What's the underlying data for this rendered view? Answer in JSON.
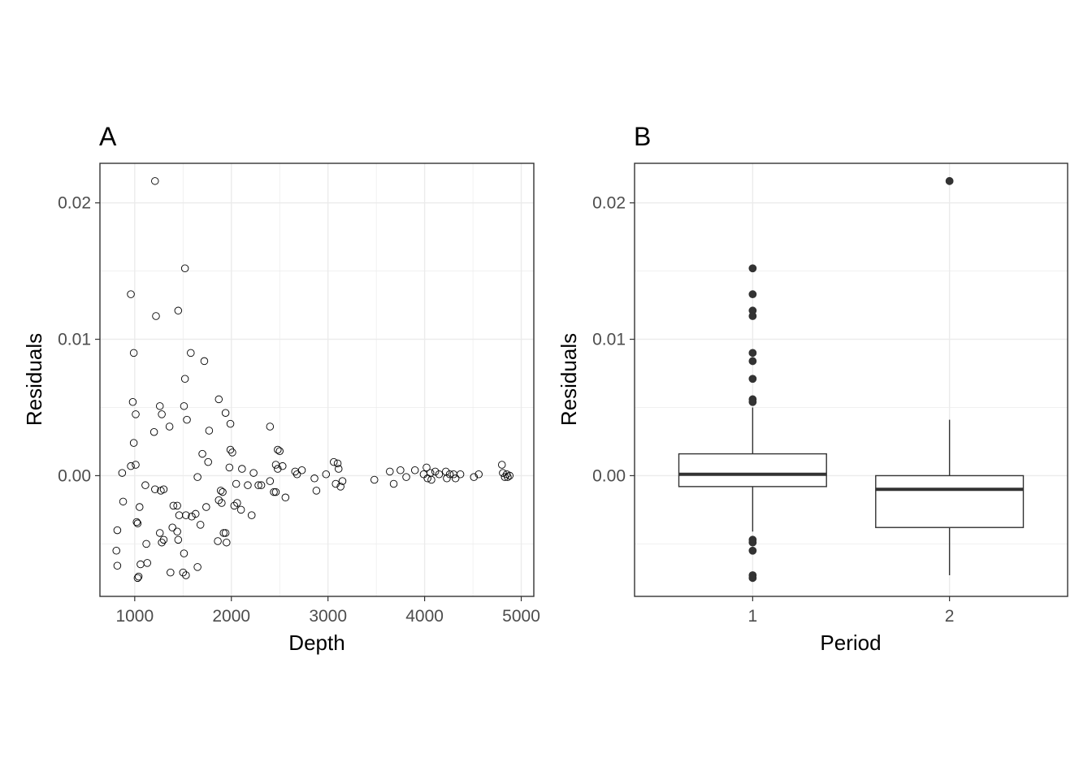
{
  "chart_data": [
    {
      "type": "scatter",
      "tag": "A",
      "xlabel": "Depth",
      "ylabel": "Residuals",
      "xlim": [
        640,
        5130
      ],
      "ylim": [
        -0.00885,
        0.0229
      ],
      "xticks": [
        1000,
        2000,
        3000,
        4000,
        5000
      ],
      "xtick_labels": [
        "1000",
        "2000",
        "3000",
        "4000",
        "5000"
      ],
      "yticks": [
        0.0,
        0.01,
        0.02
      ],
      "ytick_labels": [
        "0.00",
        "0.01",
        "0.02"
      ],
      "grid": true,
      "colors": {
        "point_stroke": "#000000",
        "panel_border": "#333333",
        "grid": "#ebebeb"
      },
      "points": [
        [
          1210,
          0.0216
        ],
        [
          960,
          0.0133
        ],
        [
          1520,
          0.0152
        ],
        [
          1220,
          0.0117
        ],
        [
          1450,
          0.0121
        ],
        [
          990,
          0.009
        ],
        [
          1580,
          0.009
        ],
        [
          1720,
          0.0084
        ],
        [
          1520,
          0.0071
        ],
        [
          980,
          0.0054
        ],
        [
          1010,
          0.0045
        ],
        [
          1260,
          0.0051
        ],
        [
          1280,
          0.0045
        ],
        [
          1510,
          0.0051
        ],
        [
          1540,
          0.0041
        ],
        [
          1870,
          0.0056
        ],
        [
          1940,
          0.0046
        ],
        [
          1990,
          0.0038
        ],
        [
          1360,
          0.0036
        ],
        [
          1200,
          0.0032
        ],
        [
          1770,
          0.0033
        ],
        [
          2400,
          0.0036
        ],
        [
          990,
          0.0024
        ],
        [
          1700,
          0.0016
        ],
        [
          1760,
          0.001
        ],
        [
          1990,
          0.0019
        ],
        [
          2010,
          0.0017
        ],
        [
          2480,
          0.0019
        ],
        [
          2500,
          0.0018
        ],
        [
          960,
          0.0007
        ],
        [
          1010,
          0.0008
        ],
        [
          870,
          0.0002
        ],
        [
          1650,
          -0.0001
        ],
        [
          1980,
          0.0006
        ],
        [
          2110,
          0.0005
        ],
        [
          2230,
          0.0002
        ],
        [
          2460,
          0.0008
        ],
        [
          2480,
          0.0005
        ],
        [
          2530,
          0.0007
        ],
        [
          2660,
          0.0003
        ],
        [
          2680,
          0.0001
        ],
        [
          2730,
          0.0004
        ],
        [
          2860,
          -0.0002
        ],
        [
          2980,
          0.0001
        ],
        [
          3060,
          0.001
        ],
        [
          3100,
          0.0009
        ],
        [
          3110,
          0.0005
        ],
        [
          3080,
          -0.0006
        ],
        [
          3130,
          -0.0008
        ],
        [
          3150,
          -0.0004
        ],
        [
          3480,
          -0.0003
        ],
        [
          3640,
          0.0003
        ],
        [
          3680,
          -0.0006
        ],
        [
          3750,
          0.0004
        ],
        [
          3810,
          -0.0001
        ],
        [
          3900,
          0.0004
        ],
        [
          3990,
          0.0001
        ],
        [
          4020,
          0.0006
        ],
        [
          4030,
          -0.0002
        ],
        [
          4060,
          0.0002
        ],
        [
          4070,
          -0.0003
        ],
        [
          4110,
          0.0003
        ],
        [
          4150,
          0.0001
        ],
        [
          4220,
          0.0003
        ],
        [
          4230,
          -0.0002
        ],
        [
          4260,
          0.0001
        ],
        [
          4300,
          0.0001
        ],
        [
          4320,
          -0.0002
        ],
        [
          4370,
          0.0001
        ],
        [
          4510,
          -0.0001
        ],
        [
          4560,
          0.0001
        ],
        [
          4800,
          0.0008
        ],
        [
          4810,
          0.0002
        ],
        [
          4830,
          -0.0001
        ],
        [
          4850,
          0.0001
        ],
        [
          4860,
          -0.0001
        ],
        [
          4880,
          0.0
        ],
        [
          2050,
          -0.0006
        ],
        [
          2170,
          -0.0007
        ],
        [
          2280,
          -0.0007
        ],
        [
          2310,
          -0.0007
        ],
        [
          2400,
          -0.0004
        ],
        [
          2440,
          -0.0012
        ],
        [
          2460,
          -0.0012
        ],
        [
          2560,
          -0.0016
        ],
        [
          2880,
          -0.0011
        ],
        [
          1890,
          -0.0011
        ],
        [
          1910,
          -0.0012
        ],
        [
          1870,
          -0.0018
        ],
        [
          1900,
          -0.002
        ],
        [
          2030,
          -0.0022
        ],
        [
          2060,
          -0.002
        ],
        [
          2100,
          -0.0025
        ],
        [
          2210,
          -0.0029
        ],
        [
          1110,
          -0.0007
        ],
        [
          1210,
          -0.001
        ],
        [
          1270,
          -0.0011
        ],
        [
          1300,
          -0.001
        ],
        [
          880,
          -0.0019
        ],
        [
          1050,
          -0.0023
        ],
        [
          1400,
          -0.0022
        ],
        [
          1440,
          -0.0022
        ],
        [
          1460,
          -0.0029
        ],
        [
          1530,
          -0.0029
        ],
        [
          1590,
          -0.003
        ],
        [
          1630,
          -0.0028
        ],
        [
          1740,
          -0.0023
        ],
        [
          1020,
          -0.0034
        ],
        [
          1030,
          -0.0035
        ],
        [
          1390,
          -0.0038
        ],
        [
          1440,
          -0.0041
        ],
        [
          1680,
          -0.0036
        ],
        [
          1260,
          -0.0042
        ],
        [
          1280,
          -0.0049
        ],
        [
          1300,
          -0.0047
        ],
        [
          1450,
          -0.0047
        ],
        [
          1920,
          -0.0042
        ],
        [
          1940,
          -0.0042
        ],
        [
          1950,
          -0.0049
        ],
        [
          1860,
          -0.0048
        ],
        [
          820,
          -0.004
        ],
        [
          1120,
          -0.005
        ],
        [
          810,
          -0.0055
        ],
        [
          1510,
          -0.0057
        ],
        [
          1060,
          -0.0065
        ],
        [
          1130,
          -0.0064
        ],
        [
          1650,
          -0.0067
        ],
        [
          820,
          -0.0066
        ],
        [
          1370,
          -0.0071
        ],
        [
          1500,
          -0.0071
        ],
        [
          1530,
          -0.0073
        ],
        [
          1040,
          -0.0074
        ],
        [
          1030,
          -0.0075
        ]
      ]
    },
    {
      "type": "box",
      "tag": "B",
      "xlabel": "Period",
      "ylabel": "Residuals",
      "categories": [
        "1",
        "2"
      ],
      "ylim": [
        -0.00885,
        0.0229
      ],
      "yticks": [
        0.0,
        0.01,
        0.02
      ],
      "ytick_labels": [
        "0.00",
        "0.01",
        "0.02"
      ],
      "grid": true,
      "colors": {
        "box_stroke": "#333333",
        "outlier_fill": "#333333",
        "panel_border": "#333333",
        "grid": "#ebebeb"
      },
      "boxes": [
        {
          "category": "1",
          "lower_whisker": -0.0041,
          "q1": -0.0008,
          "median": 0.0001,
          "q3": 0.0016,
          "upper_whisker": 0.005,
          "outliers": [
            0.0152,
            0.0133,
            0.0121,
            0.0117,
            0.009,
            0.0084,
            0.0071,
            0.0056,
            0.0054,
            -0.0047,
            -0.0049,
            -0.0055,
            -0.0073,
            -0.0075
          ]
        },
        {
          "category": "2",
          "lower_whisker": -0.0073,
          "q1": -0.0038,
          "median": -0.001,
          "q3": 0.0,
          "upper_whisker": 0.0041,
          "outliers": [
            0.0216
          ]
        }
      ]
    }
  ]
}
